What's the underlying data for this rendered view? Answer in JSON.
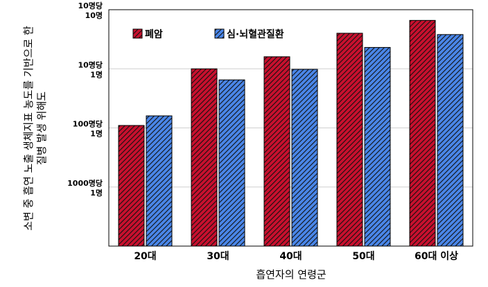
{
  "chart_data": {
    "type": "bar",
    "scale": "log",
    "ylim": [
      0.001,
      10
    ],
    "yticks": [
      {
        "value": 10,
        "line1": "10명당",
        "line2": "10명"
      },
      {
        "value": 1,
        "line1": "10명당",
        "line2": "1명"
      },
      {
        "value": 0.1,
        "line1": "100명당",
        "line2": "1명"
      },
      {
        "value": 0.01,
        "line1": "1000명당",
        "line2": "1명"
      }
    ],
    "categories": [
      "20대",
      "30대",
      "40대",
      "50대",
      "60대 이상"
    ],
    "series": [
      {
        "name": "폐암",
        "color": "#c8102e",
        "values": [
          0.11,
          1.0,
          1.6,
          4.0,
          6.6
        ]
      },
      {
        "name": "심·뇌혈관질환",
        "color": "#4a86e8",
        "values": [
          0.16,
          0.65,
          0.98,
          2.3,
          3.8
        ]
      }
    ],
    "xlabel": "흡연자의 연령군",
    "ylabel_lines": [
      "소변 중 흡연 노출 생체지표 농도를 기반으로 한",
      "질병 발생 위해도"
    ],
    "grid": true,
    "legend_position": "top-left"
  }
}
